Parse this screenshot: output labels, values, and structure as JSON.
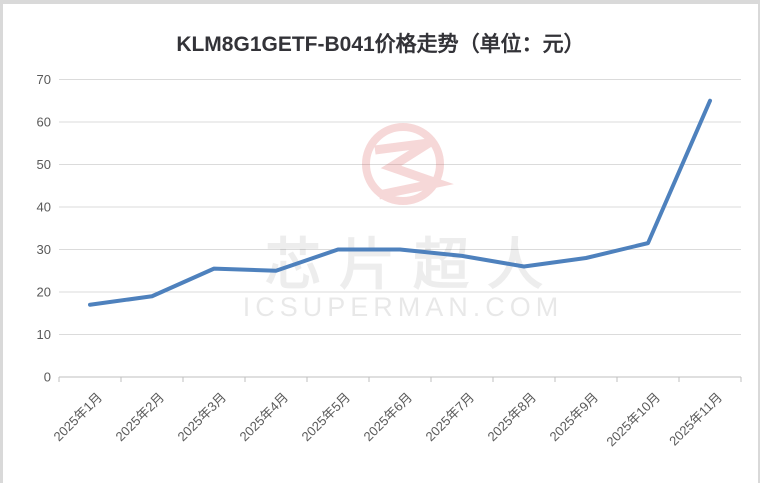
{
  "chart_data": {
    "type": "line",
    "title": "KLM8G1GETF-B041价格走势（单位：元）",
    "categories": [
      "2025年1月",
      "2025年2月",
      "2025年3月",
      "2025年4月",
      "2025年5月",
      "2025年6月",
      "2025年7月",
      "2025年8月",
      "2025年9月",
      "2025年10月",
      "2025年11月"
    ],
    "series": [
      {
        "name": "价格",
        "values": [
          17,
          19,
          25.5,
          25,
          30,
          30,
          28.5,
          26,
          28,
          31.5,
          65
        ]
      }
    ],
    "xlabel": "",
    "ylabel": "",
    "ylim": [
      0,
      70
    ],
    "ytick_step": 10,
    "grid": true,
    "legend": false,
    "watermark": {
      "cn": "芯片超人",
      "en": "ICSUPERMAN.COM",
      "logo": "red-ring-lightning"
    },
    "colors": {
      "line": "#4E81BD",
      "gridline": "#DBDBDB",
      "axis": "#BFBFBF",
      "tick_label": "#595959",
      "title": "#333338",
      "watermark_red": "#D85050",
      "watermark_gray": "#000000"
    }
  }
}
